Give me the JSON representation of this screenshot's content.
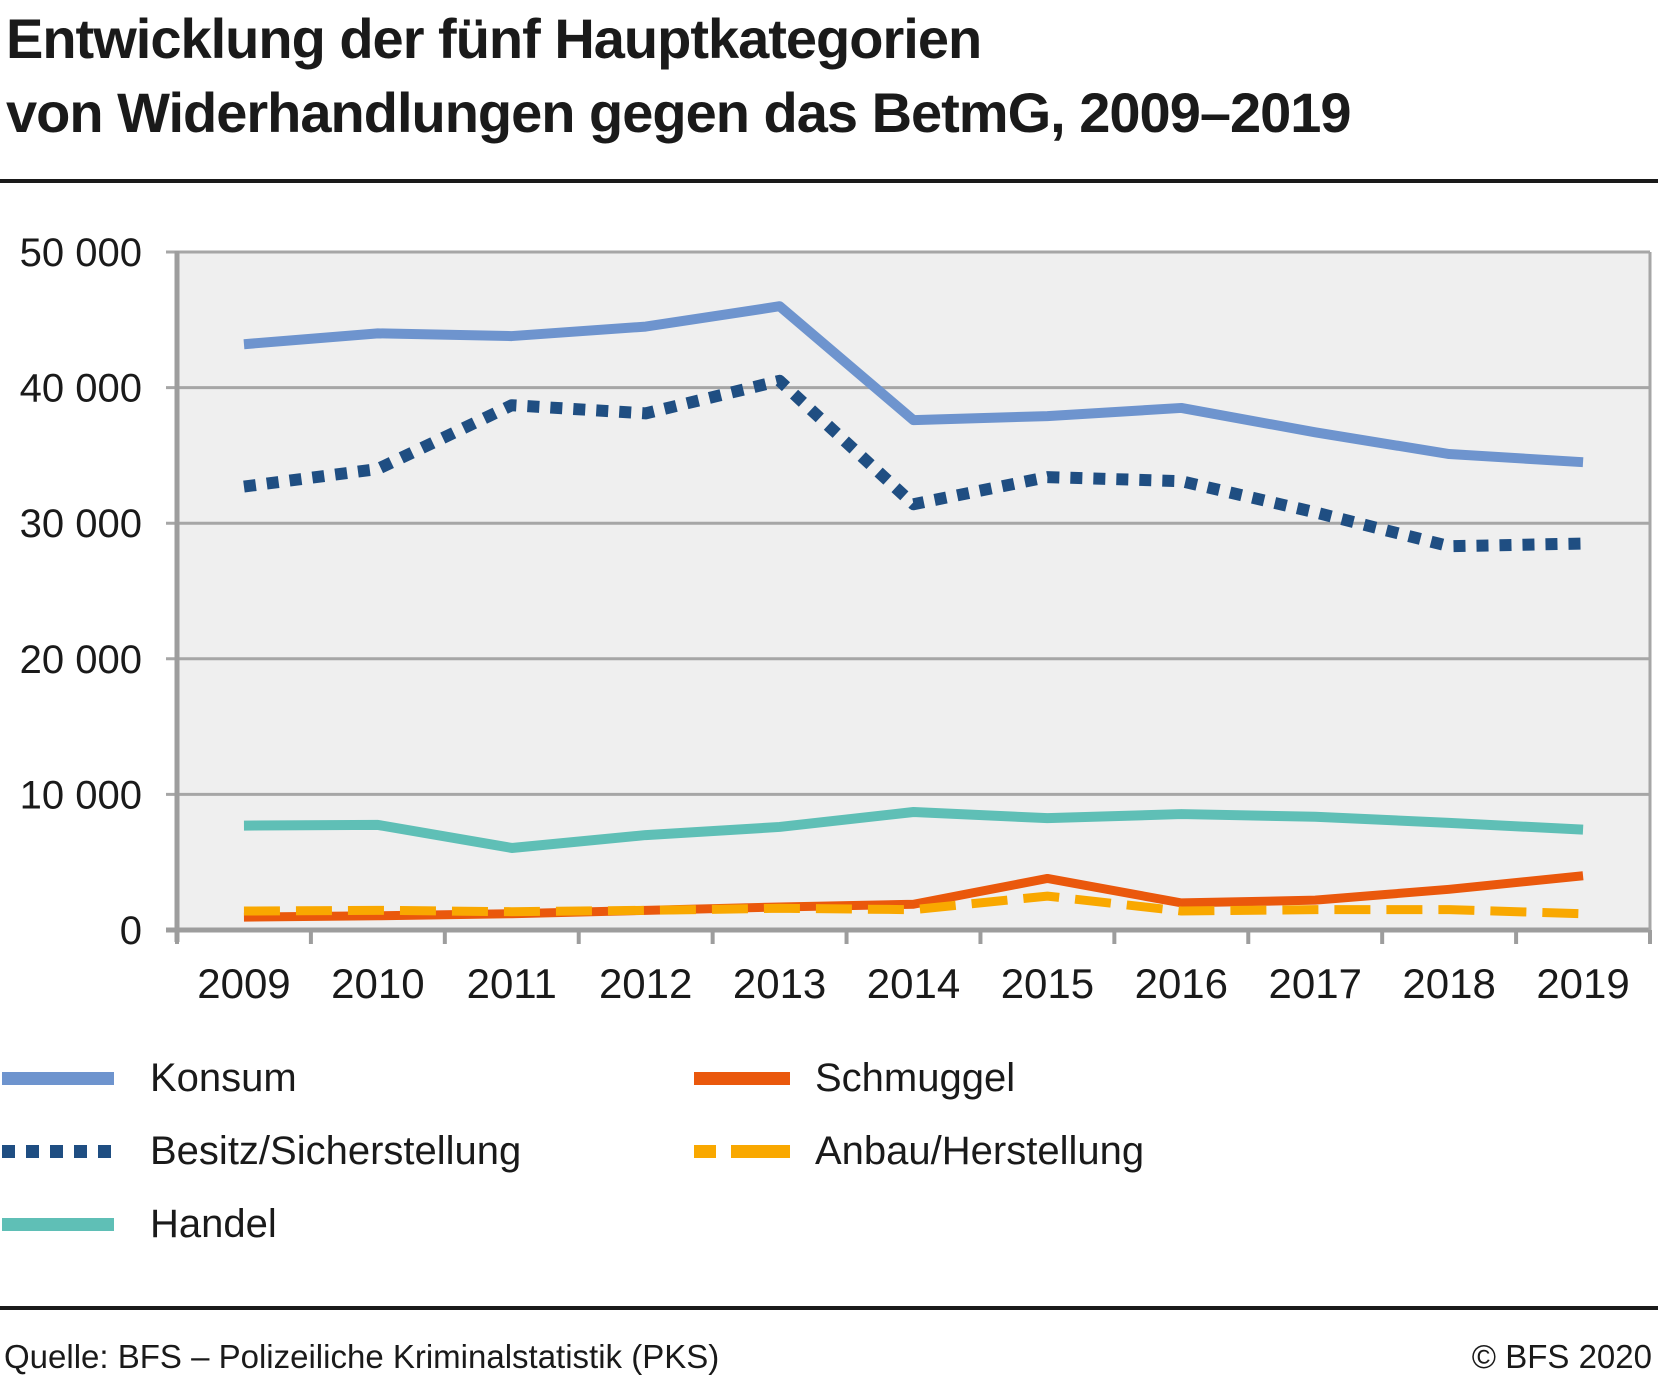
{
  "title": {
    "line1": "Entwicklung der fünf Hauptkategorien",
    "line2": "von Widerhandlungen gegen das BetmG, 2009–2019"
  },
  "footer": {
    "source": "Quelle: BFS – Polizeiliche Kriminalstatistik (PKS)",
    "copyright": "© BFS 2020"
  },
  "colors": {
    "plot_background": "#efefef",
    "gridline": "#a6a6a6",
    "axis": "#9d9d9d",
    "text": "#1a1a1a"
  },
  "chart_data": {
    "type": "line",
    "categories": [
      "2009",
      "2010",
      "2011",
      "2012",
      "2013",
      "2014",
      "2015",
      "2016",
      "2017",
      "2018",
      "2019"
    ],
    "series": [
      {
        "name": "Konsum",
        "color": "#6e94ce",
        "style": "solid",
        "values": [
          43200,
          44000,
          43800,
          44500,
          46000,
          37600,
          37900,
          38500,
          36700,
          35100,
          34500
        ]
      },
      {
        "name": "Besitz/Sicherstellung",
        "color": "#1f4e82",
        "style": "dotted",
        "values": [
          32700,
          34000,
          38700,
          38100,
          40500,
          31400,
          33400,
          33100,
          30800,
          28300,
          28500
        ]
      },
      {
        "name": "Handel",
        "color": "#5fbfb6",
        "style": "solid",
        "values": [
          7700,
          7750,
          6050,
          7000,
          7600,
          8700,
          8250,
          8550,
          8350,
          7900,
          7400
        ]
      },
      {
        "name": "Schmuggel",
        "color": "#ea580c",
        "style": "solid",
        "values": [
          950,
          1050,
          1200,
          1450,
          1700,
          1900,
          3800,
          2000,
          2200,
          3000,
          4000
        ]
      },
      {
        "name": "Anbau/Herstellung",
        "color": "#f9a800",
        "style": "dashed",
        "values": [
          1400,
          1450,
          1350,
          1450,
          1600,
          1500,
          2500,
          1400,
          1500,
          1500,
          1200
        ]
      }
    ],
    "xlabel": "",
    "ylabel": "",
    "ylim": [
      0,
      50000
    ],
    "ytick_labels": [
      "0",
      "10 000",
      "20 000",
      "30 000",
      "40 000",
      "50 000"
    ],
    "grid": true,
    "legend_position": "below-left"
  }
}
